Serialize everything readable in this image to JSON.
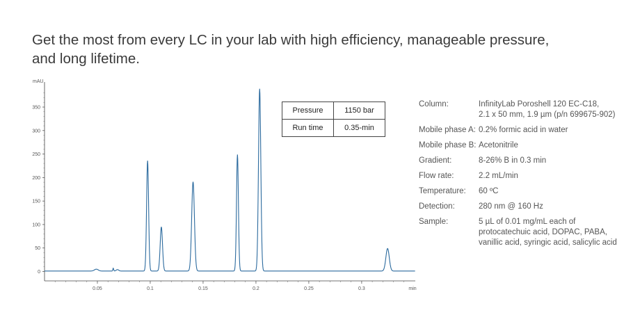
{
  "headline": {
    "line1": "Get the most from every LC in your lab with high efficiency, manageable pressure,",
    "line2": "and long lifetime."
  },
  "kpi_table": [
    {
      "label": "Pressure",
      "value": "1150 bar"
    },
    {
      "label": "Run time",
      "value": "0.35-min"
    }
  ],
  "conditions": [
    {
      "label": "Column:",
      "value": "InfinityLab Poroshell 120 EC-C18,\n2.1 x 50 mm, 1.9 µm (p/n 699675-902)"
    },
    {
      "label": "Mobile phase A:",
      "value": "0.2% formic acid in water"
    },
    {
      "label": "Mobile phase B:",
      "value": "Acetonitrile"
    },
    {
      "label": "Gradient:",
      "value": "8-26% B in 0.3 min"
    },
    {
      "label": "Flow rate:",
      "value": "2.2 mL/min"
    },
    {
      "label": "Temperature:",
      "value": "60 ºC"
    },
    {
      "label": "Detection:",
      "value": "280 nm @ 160 Hz"
    },
    {
      "label": "Sample:",
      "value": "5 µL of 0.01 mg/mL each of\nprotocatechuic acid, DOPAC, PABA,\nvanillic acid, syringic acid, salicylic acid"
    }
  ],
  "chart_data": {
    "type": "line",
    "ylabel": "mAU",
    "xlabel": "min",
    "x_range": [
      0,
      0.35
    ],
    "y_range": [
      -20,
      390
    ],
    "x_ticks": [
      0.05,
      0.1,
      0.15,
      0.2,
      0.25,
      0.3
    ],
    "x_tick_labels": [
      "0.05",
      "0.1",
      "0.15",
      "0.2",
      "0.25",
      "0.3"
    ],
    "y_ticks": [
      0,
      50,
      100,
      150,
      200,
      250,
      300,
      350
    ],
    "y_tick_labels": [
      "0",
      "50",
      "100",
      "150",
      "200",
      "250",
      "300",
      "350"
    ],
    "line_color": "#2b6a9e",
    "baseline": 1,
    "peaks": [
      {
        "rt": 0.049,
        "height": 4,
        "width": 0.0018
      },
      {
        "rt": 0.065,
        "height": 6,
        "width": 0.0004
      },
      {
        "rt": 0.069,
        "height": 3,
        "width": 0.0012
      },
      {
        "rt": 0.0975,
        "height": 235,
        "width": 0.00095
      },
      {
        "rt": 0.1105,
        "height": 94,
        "width": 0.0011
      },
      {
        "rt": 0.1405,
        "height": 190,
        "width": 0.0013
      },
      {
        "rt": 0.1825,
        "height": 248,
        "width": 0.0009
      },
      {
        "rt": 0.2035,
        "height": 388,
        "width": 0.0011
      },
      {
        "rt": 0.3245,
        "height": 48,
        "width": 0.0016
      }
    ]
  }
}
